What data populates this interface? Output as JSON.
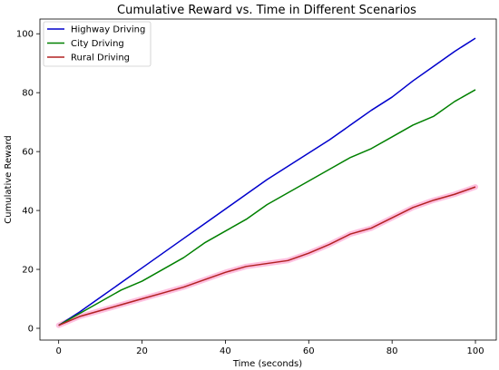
{
  "chart_data": {
    "type": "line",
    "title": "Cumulative Reward vs. Time in Different Scenarios",
    "xlabel": "Time (seconds)",
    "ylabel": "Cumulative Reward",
    "xlim": [
      -4.5,
      105
    ],
    "ylim": [
      -4.0,
      105.0
    ],
    "x_ticks": [
      0,
      20,
      40,
      60,
      80,
      100
    ],
    "y_ticks": [
      0,
      20,
      40,
      60,
      80,
      100
    ],
    "x_tick_labels": [
      "0",
      "20",
      "40",
      "60",
      "80",
      "100"
    ],
    "y_tick_labels": [
      "0",
      "20",
      "40",
      "60",
      "80",
      "100"
    ],
    "grid": false,
    "legend_position": "top-left",
    "x": [
      0,
      5,
      10,
      15,
      20,
      25,
      30,
      35,
      40,
      45,
      50,
      55,
      60,
      65,
      70,
      75,
      80,
      85,
      90,
      95,
      100
    ],
    "series": [
      {
        "name": "Highway Driving",
        "color": "#0000cc",
        "values": [
          1,
          5.5,
          10.5,
          15.5,
          20.5,
          25.5,
          30.5,
          35.5,
          40.5,
          45.5,
          50.5,
          55,
          59.5,
          64,
          69,
          74,
          78.5,
          84,
          89,
          94,
          98.5
        ]
      },
      {
        "name": "City Driving",
        "color": "#008000",
        "values": [
          1,
          5,
          9,
          13,
          16,
          20,
          24,
          29,
          33,
          37,
          42,
          46,
          50,
          54,
          58,
          61,
          65,
          69,
          72,
          77,
          81
        ]
      },
      {
        "name": "Rural Driving",
        "color": "#b22222",
        "band_color": "#ffc0e0",
        "values": [
          1,
          4,
          6,
          8,
          10,
          12,
          14,
          16.5,
          19,
          21,
          22,
          23,
          25.5,
          28.5,
          32,
          34,
          37.5,
          41,
          43.5,
          45.5,
          48
        ]
      }
    ]
  }
}
